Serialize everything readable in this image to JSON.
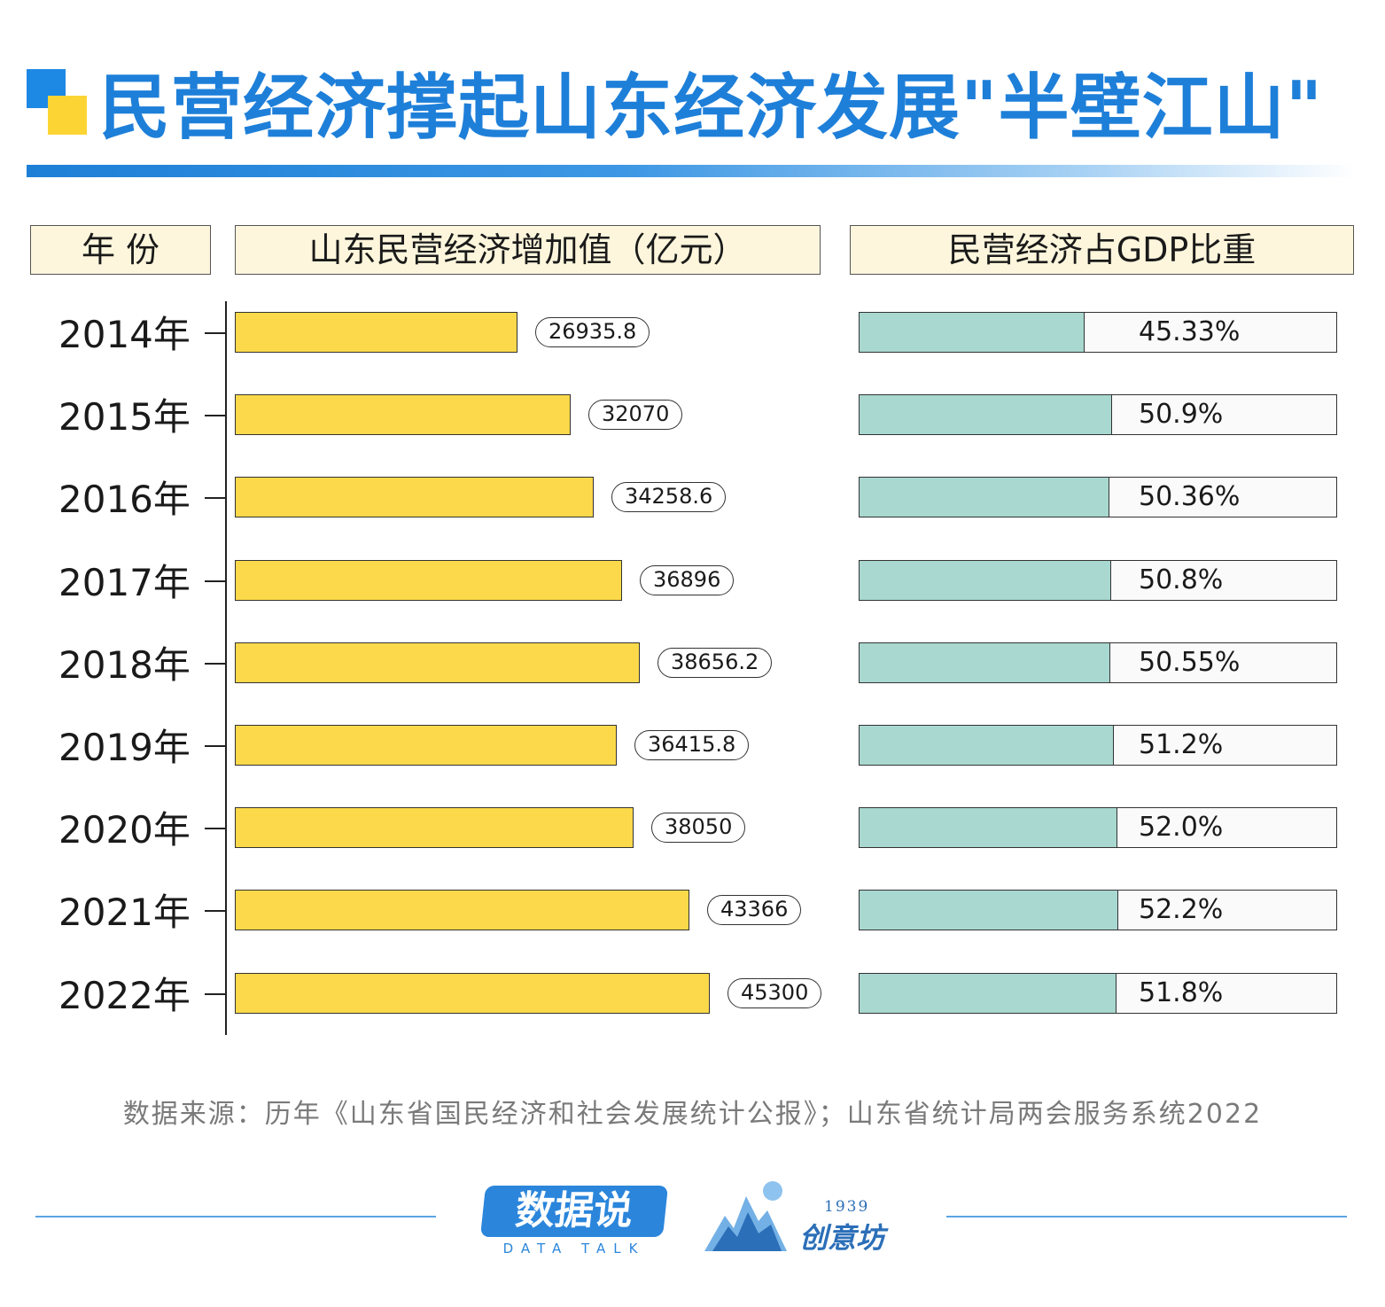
{
  "title": "民营经济撑起山东经济发展\"半壁江山\"",
  "headers": {
    "year": "年 份",
    "value": "山东民营经济增加值（亿元）",
    "share": "民营经济占GDP比重"
  },
  "chart_data": [
    {
      "type": "bar",
      "orientation": "horizontal",
      "title": "山东民营经济增加值（亿元）",
      "categories": [
        "2014年",
        "2015年",
        "2016年",
        "2017年",
        "2018年",
        "2019年",
        "2020年",
        "2021年",
        "2022年"
      ],
      "values": [
        26935.8,
        32070,
        34258.6,
        36896,
        38656.2,
        36415.8,
        38050,
        43366,
        45300
      ],
      "value_labels": [
        "26935.8",
        "32070",
        "34258.6",
        "36896",
        "38656.2",
        "36415.8",
        "38050",
        "43366",
        "45300"
      ],
      "color": "#fcd94a",
      "grid": false
    },
    {
      "type": "bar",
      "orientation": "horizontal",
      "title": "民营经济占GDP比重",
      "categories": [
        "2014年",
        "2015年",
        "2016年",
        "2017年",
        "2018年",
        "2019年",
        "2020年",
        "2021年",
        "2022年"
      ],
      "values": [
        45.33,
        50.9,
        50.36,
        50.8,
        50.55,
        51.2,
        52.0,
        52.2,
        51.8
      ],
      "value_labels": [
        "45.33%",
        "50.9%",
        "50.36%",
        "50.8%",
        "50.55%",
        "51.2%",
        "52.0%",
        "52.2%",
        "51.8%"
      ],
      "ylim": [
        0,
        100
      ],
      "color": "#a8d8d0",
      "grid": false
    }
  ],
  "source": "数据来源：历年《山东省国民经济和社会发展统计公报》；山东省统计局两会服务系统2022",
  "logos": {
    "data_talk_cn": "数据说",
    "data_talk_en": "DATA TALK",
    "brand_year": "1939",
    "brand_name": "创意坊"
  },
  "colors": {
    "title_blue": "#1e7fd9",
    "accent_yellow": "#fcd535",
    "bar_yellow": "#fcd94a",
    "bar_teal": "#a8d8d0",
    "header_bg": "#fdf6dc"
  }
}
